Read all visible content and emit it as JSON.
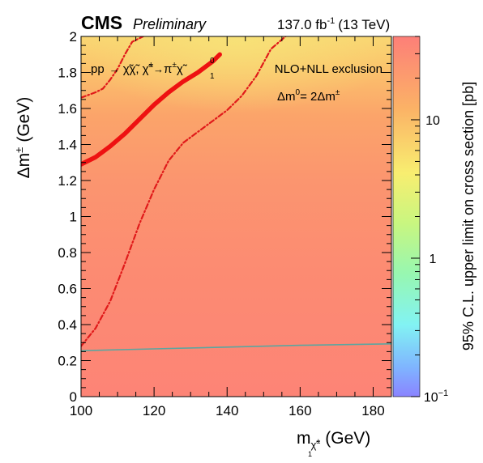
{
  "chart_data": {
    "type": "heatmap",
    "header": {
      "experiment": "CMS",
      "status": "Preliminary",
      "lumi": "137.0 fb",
      "lumi_exp": "-1",
      "energy": "(13 TeV)"
    },
    "process_label": {
      "pp": "pp",
      "arrow": "→",
      "chi_pair": "χ̃χ̃,",
      "chi_pm": "χ̃",
      "pm": "±",
      "arrow2": "→",
      "pi": "π",
      "pi_pm": "±",
      "chi0": "χ̃",
      "chi0_sup": "0",
      "chi0_sub": "1"
    },
    "exclusion_label": "NLO+NLL exclusion",
    "relation_label": {
      "a": "Δm",
      "sup0": "0",
      "b": "= 2Δm",
      "supb": "±"
    },
    "xaxis": {
      "label_m": "m",
      "label_sub_chi": "χ̃",
      "label_sub_pm": "±",
      "label_sub_1": "1",
      "label_unit": "(GeV)",
      "range": [
        100,
        185
      ],
      "ticks": [
        "100",
        "120",
        "140",
        "160",
        "180"
      ]
    },
    "yaxis": {
      "label_a": "Δm",
      "label_sup": "±",
      "label_unit": "(GeV)",
      "range": [
        0,
        2
      ],
      "ticks": [
        "0",
        "0.2",
        "0.4",
        "0.6",
        "0.8",
        "1",
        "1.2",
        "1.4",
        "1.6",
        "1.8",
        "2"
      ]
    },
    "zaxis": {
      "label": "95% C.L. upper limit on cross section [pb]",
      "scale": "log",
      "range": [
        0.1,
        40
      ],
      "ticks": [
        "10",
        "1",
        "10"
      ],
      "tick_exp": "−1"
    },
    "series": [
      {
        "role": "observed",
        "x": [
          100,
          104,
          108,
          112,
          116,
          120,
          124,
          128,
          132,
          136,
          138
        ],
        "y": [
          1.29,
          1.33,
          1.39,
          1.46,
          1.54,
          1.62,
          1.69,
          1.75,
          1.8,
          1.86,
          1.9
        ]
      },
      {
        "role": "expected",
        "x": [
          100,
          104,
          106,
          108,
          110,
          112,
          114,
          117
        ],
        "y": [
          1.66,
          1.69,
          1.71,
          1.76,
          1.82,
          1.9,
          1.97,
          2.0
        ]
      },
      {
        "role": "expected",
        "x": [
          100,
          104,
          108,
          112,
          116,
          120,
          124,
          128,
          132,
          136,
          140,
          144,
          148,
          152,
          156
        ],
        "y": [
          0.28,
          0.38,
          0.53,
          0.74,
          0.96,
          1.15,
          1.31,
          1.41,
          1.47,
          1.53,
          1.59,
          1.67,
          1.78,
          1.93,
          2.0
        ]
      },
      {
        "role": "lower",
        "x": [
          100,
          120,
          140,
          160,
          185
        ],
        "y": [
          0.255,
          0.265,
          0.275,
          0.285,
          0.293
        ]
      }
    ]
  }
}
